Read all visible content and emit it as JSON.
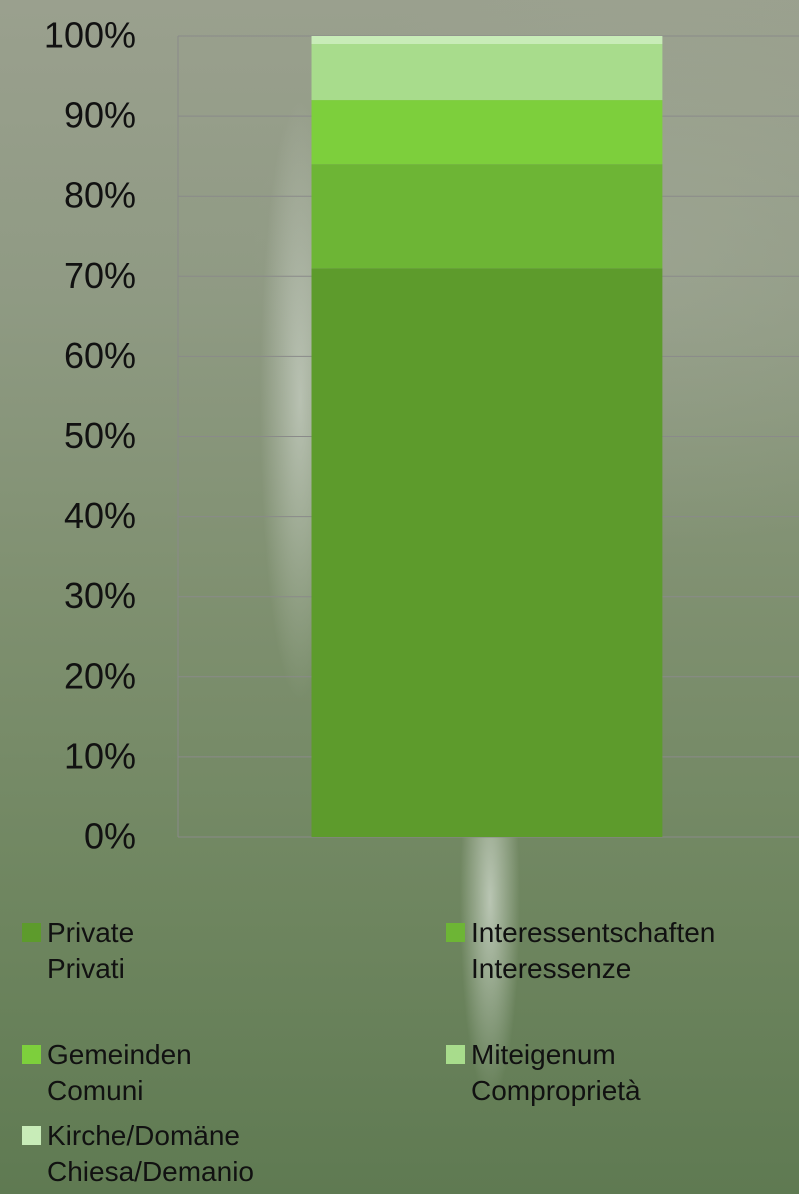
{
  "chart_data": {
    "type": "stacked_bar",
    "categories": [
      null
    ],
    "series": [
      {
        "name": "Private\nPrivati",
        "color": "#5d9b2c",
        "values": [
          71
        ]
      },
      {
        "name": "Interessentschaften\nInteressenze",
        "color": "#6db535",
        "values": [
          13
        ]
      },
      {
        "name": "Gemeinden\nComuni",
        "color": "#7dcf3c",
        "values": [
          8
        ]
      },
      {
        "name": "Miteigenum\nComproprietà",
        "color": "#a8dc8c",
        "values": [
          7
        ]
      },
      {
        "name": "Kirche/Domäne\nChiesa/Demanio",
        "color": "#c8ecb8",
        "values": [
          1
        ]
      }
    ],
    "ylim": [
      0,
      100
    ],
    "yticks": [
      {
        "value": 0,
        "label": "0%"
      },
      {
        "value": 10,
        "label": "10%"
      },
      {
        "value": 20,
        "label": "20%"
      },
      {
        "value": 30,
        "label": "30%"
      },
      {
        "value": 40,
        "label": "40%"
      },
      {
        "value": 50,
        "label": "50%"
      },
      {
        "value": 60,
        "label": "60%"
      },
      {
        "value": 70,
        "label": "70%"
      },
      {
        "value": 80,
        "label": "80%"
      },
      {
        "value": 90,
        "label": "90%"
      },
      {
        "value": 100,
        "label": "100%"
      }
    ],
    "grid": true,
    "legend": "bottom"
  }
}
